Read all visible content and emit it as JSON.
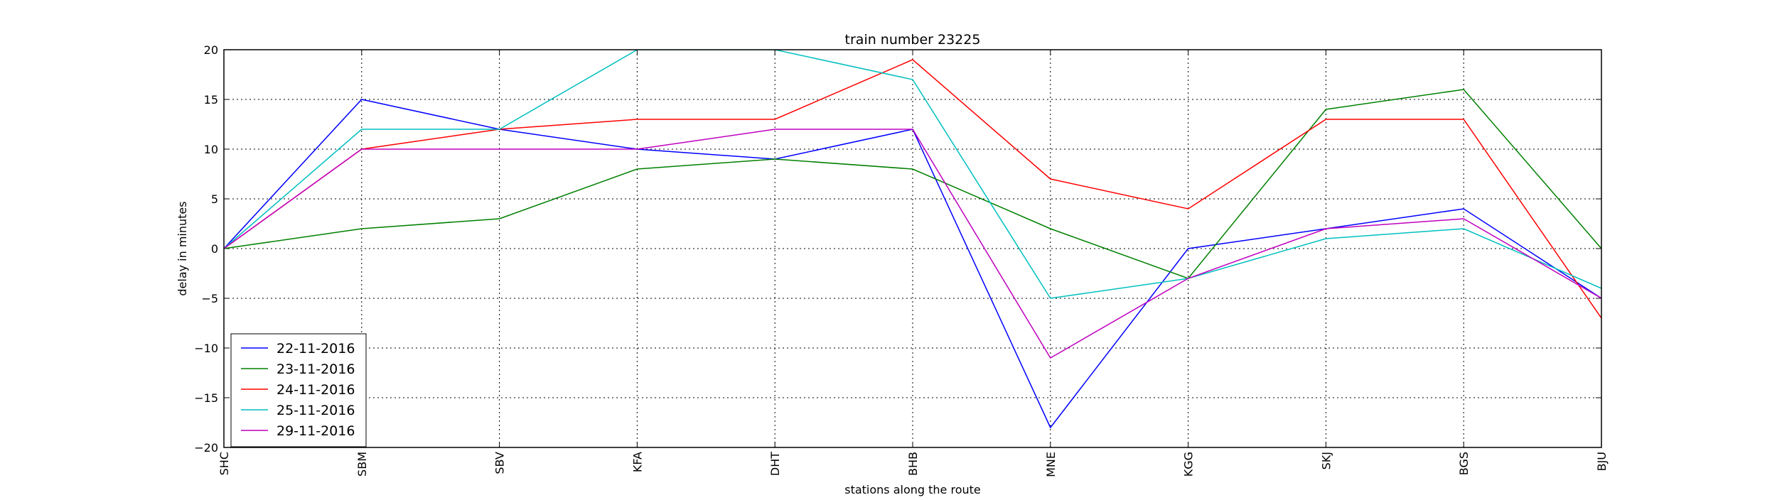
{
  "chart_data": {
    "type": "line",
    "title": "train number 23225",
    "xlabel": "stations along the route",
    "ylabel": "delay in minutes",
    "categories": [
      "SHC",
      "SBM",
      "SBV",
      "KFA",
      "DHT",
      "BHB",
      "MNE",
      "KGG",
      "SKJ",
      "BGS",
      "BJU"
    ],
    "ylim": [
      -20,
      20
    ],
    "yticks": [
      -20,
      -15,
      -10,
      -5,
      0,
      5,
      10,
      15,
      20
    ],
    "grid": true,
    "legend_position": "lower-left",
    "series": [
      {
        "name": "22-11-2016",
        "color": "#0000ff",
        "values": [
          0,
          15,
          12,
          10,
          9,
          12,
          -18,
          0,
          2,
          4,
          -5
        ]
      },
      {
        "name": "23-11-2016",
        "color": "#008000",
        "values": [
          0,
          2,
          3,
          8,
          9,
          8,
          2,
          -3,
          14,
          16,
          0
        ]
      },
      {
        "name": "24-11-2016",
        "color": "#ff0000",
        "values": [
          0,
          10,
          12,
          13,
          13,
          19,
          7,
          4,
          13,
          13,
          -7
        ]
      },
      {
        "name": "25-11-2016",
        "color": "#00bfbf",
        "values": [
          0,
          12,
          12,
          20,
          20,
          17,
          -5,
          -3,
          1,
          2,
          -4
        ]
      },
      {
        "name": "29-11-2016",
        "color": "#bf00bf",
        "values": [
          0,
          10,
          10,
          10,
          12,
          12,
          -11,
          -3,
          2,
          3,
          -5
        ]
      }
    ]
  }
}
